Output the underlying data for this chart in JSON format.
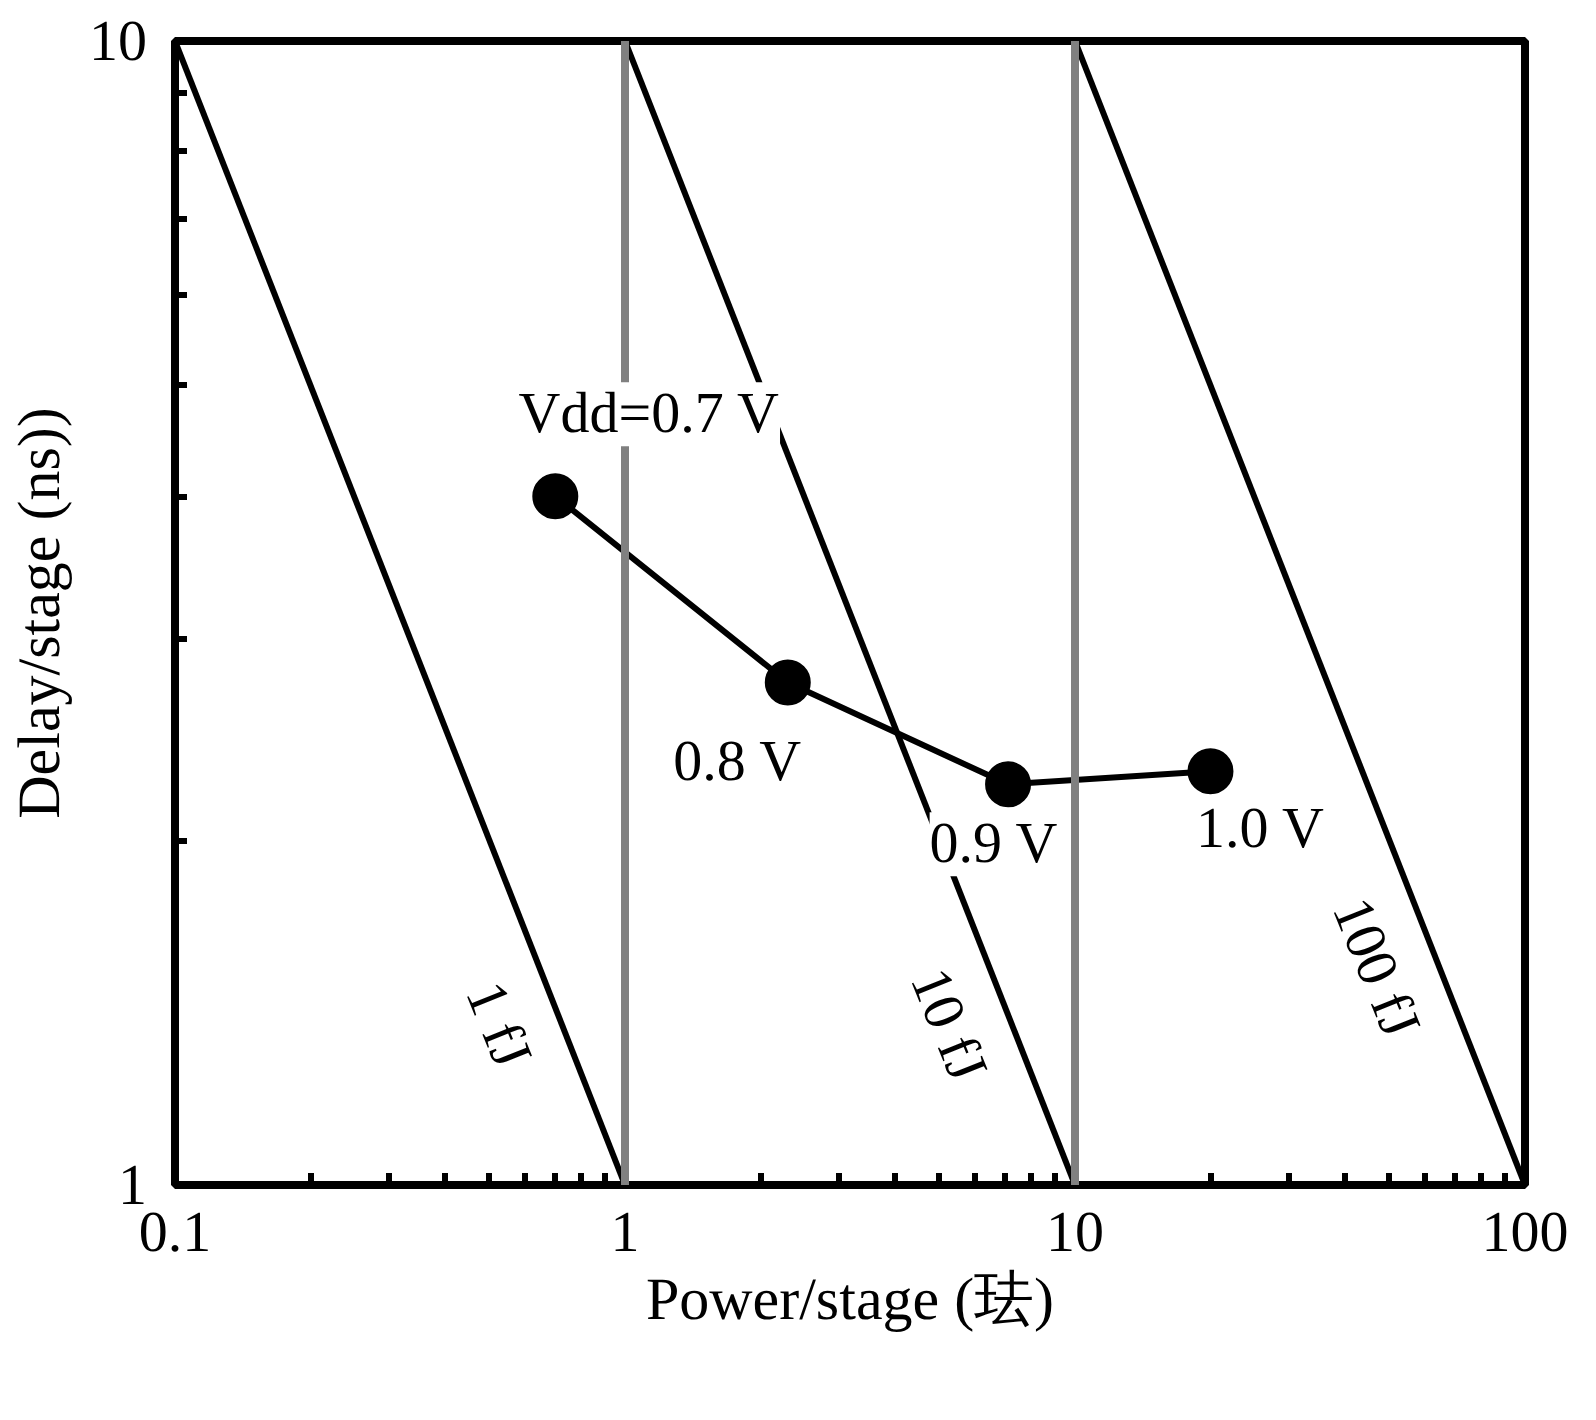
{
  "chart_data": {
    "type": "line",
    "xlabel": "Power/stage (珐)",
    "ylabel": "Delay/stage (ns))",
    "log": "xy",
    "xlim": [
      0.1,
      100
    ],
    "ylim": [
      1,
      10
    ],
    "xticks": [
      0.1,
      1,
      10,
      100
    ],
    "yticks": [
      1,
      10
    ],
    "series": [
      {
        "name": "1 fJ",
        "color": "#000000",
        "x": [
          0.1,
          1
        ],
        "values": [
          10,
          1
        ]
      },
      {
        "name": "10 fJ",
        "color": "#000000",
        "x": [
          1,
          10
        ],
        "values": [
          10,
          1
        ]
      },
      {
        "name": "100 fJ",
        "color": "#000000",
        "x": [
          10,
          100
        ],
        "values": [
          10,
          1
        ]
      },
      {
        "color": "#000000",
        "marker": "circle",
        "x": [
          0.7,
          2.3,
          7.1,
          20
        ],
        "values": [
          4.0,
          2.75,
          2.24,
          2.3
        ]
      }
    ],
    "ref_lines": [
      {
        "axis": "x",
        "value": 1,
        "color": "#808080"
      },
      {
        "axis": "x",
        "value": 10,
        "color": "#808080"
      }
    ],
    "annotations": [
      {
        "text": "Vdd=0.7 V",
        "x": 0.7,
        "y": 4.0
      },
      {
        "text": "0.8 V",
        "x": 2.3,
        "y": 2.75
      },
      {
        "text": "0.9 V",
        "x": 7.1,
        "y": 2.24
      },
      {
        "text": "1.0 V",
        "x": 20,
        "y": 2.3
      }
    ]
  }
}
